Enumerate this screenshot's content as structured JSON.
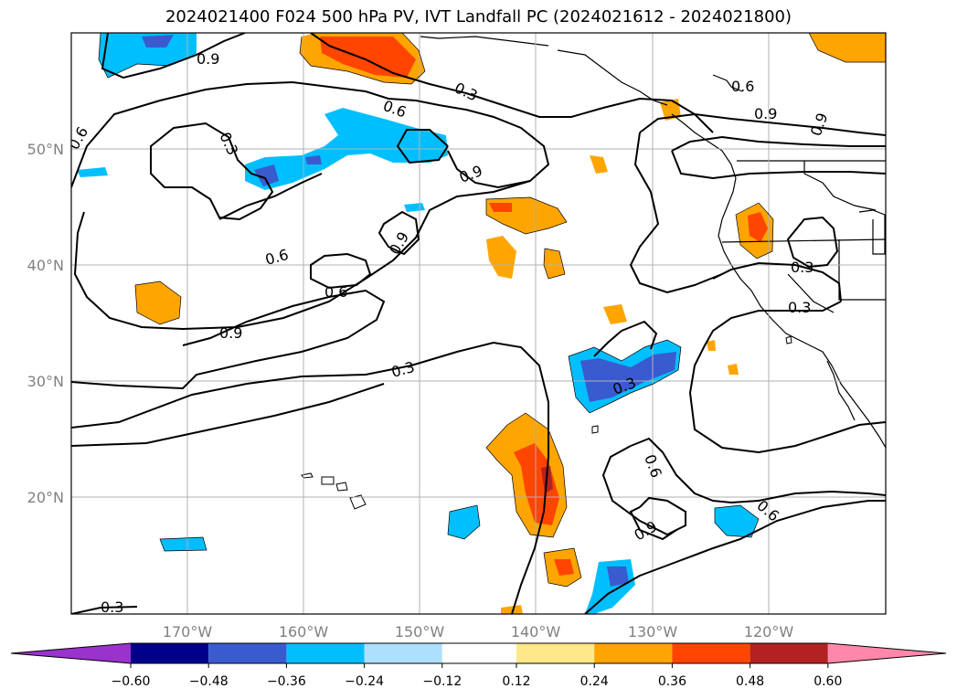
{
  "title": "2024021400 F024 500 hPa PV, IVT Landfall PC (2024021612 - 2024021800)",
  "lat_labels": [
    "50°N",
    "40°N",
    "30°N",
    "20°N"
  ],
  "lon_labels": [
    "170°W",
    "160°W",
    "150°W",
    "140°W",
    "130°W",
    "120°W"
  ],
  "contour_labels": [
    "0.9",
    "0.6",
    "0.3",
    "0.6",
    "0.9",
    "0.9",
    "0.3",
    "0.9",
    "0.6",
    "0.6",
    "0.9",
    "0.3",
    "0.3",
    "0.3",
    "0.6",
    "0.9",
    "0.6",
    "0.3",
    "0.6",
    "0.3",
    "0.3"
  ],
  "colorbar": {
    "ticks": [
      "−0.60",
      "−0.48",
      "−0.36",
      "−0.24",
      "−0.12",
      "0.12",
      "0.24",
      "0.36",
      "0.48",
      "0.60"
    ],
    "colors": [
      "#9a32cd",
      "#00008b",
      "#3a5bd0",
      "#00bfff",
      "#ade0fb",
      "#ffffff",
      "#ffe88a",
      "#ffa500",
      "#ff4500",
      "#b22222",
      "#ff88aa"
    ]
  },
  "chart_data": {
    "type": "heatmap",
    "title": "2024021400 F024 500 hPa PV, IVT Landfall PC (2024021612 - 2024021800)",
    "xlim": [
      -180,
      -110
    ],
    "ylim": [
      10,
      60
    ],
    "grid": true,
    "contour_levels": [
      0.3,
      0.6,
      0.9
    ],
    "fill_levels": [
      -0.6,
      -0.48,
      -0.36,
      -0.24,
      -0.12,
      0.12,
      0.24,
      0.36,
      0.48,
      0.6
    ],
    "colorbar_position": "bottom"
  }
}
